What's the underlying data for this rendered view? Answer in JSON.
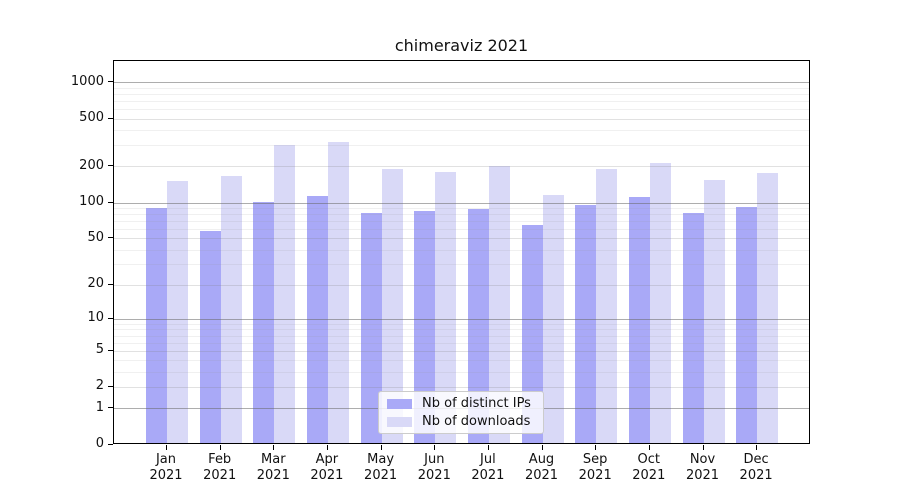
{
  "title": "chimeraviz 2021",
  "chart_data": {
    "type": "bar",
    "title": "chimeraviz 2021",
    "categories": [
      "Jan",
      "Feb",
      "Mar",
      "Apr",
      "May",
      "Jun",
      "Jul",
      "Aug",
      "Sep",
      "Oct",
      "Nov",
      "Dec"
    ],
    "year_label": "2021",
    "series": [
      {
        "name": "Nb of distinct IPs",
        "color": "#a9a9f7",
        "values": [
          87,
          56,
          98,
          111,
          80,
          83,
          86,
          63,
          93,
          108,
          80,
          89
        ]
      },
      {
        "name": "Nb of downloads",
        "color": "#d9d9f7",
        "values": [
          148,
          163,
          293,
          311,
          186,
          174,
          197,
          112,
          184,
          209,
          151,
          171
        ]
      }
    ],
    "y_ticks": [
      0,
      1,
      2,
      5,
      10,
      20,
      50,
      100,
      200,
      500,
      1000
    ],
    "scale": "log1p",
    "ylim": [
      0,
      1500
    ],
    "xlabel": "",
    "ylabel": "",
    "grid": true,
    "grid_over_bars": true,
    "legend_position": "lower-center",
    "axis_color": "#000000",
    "grid_color_major": "#bdbdbd",
    "grid_color_mid": "#e3e3e3",
    "grid_color_minor": "#f0f0f0",
    "background_color": "#ffffff"
  }
}
